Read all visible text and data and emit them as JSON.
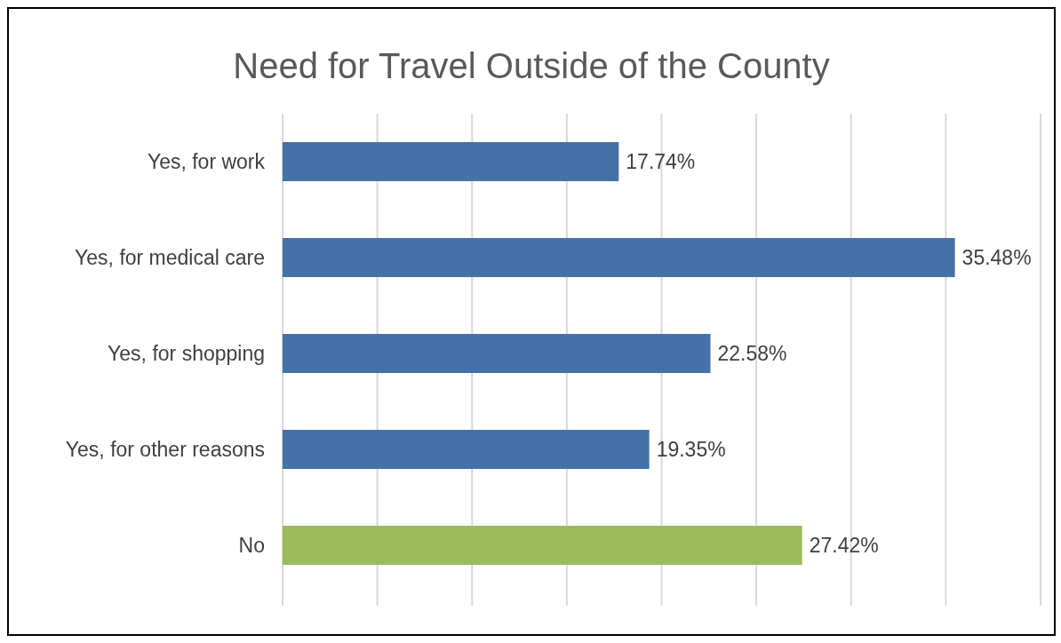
{
  "chart_data": {
    "type": "bar",
    "orientation": "horizontal",
    "title": "Need for Travel Outside of the County",
    "categories": [
      "Yes, for work",
      "Yes, for medical care",
      "Yes, for shopping",
      "Yes, for other reasons",
      "No"
    ],
    "values": [
      17.74,
      35.48,
      22.58,
      19.35,
      27.42
    ],
    "colors": [
      "#4472a8",
      "#4472a8",
      "#4472a8",
      "#4472a8",
      "#9bbb59"
    ],
    "value_labels": [
      "17.74%",
      "35.48%",
      "22.58%",
      "19.35%",
      "27.42%"
    ],
    "xlim": [
      0,
      40
    ],
    "xticks": [
      {
        "value": 0,
        "label": null
      },
      {
        "value": 5,
        "label": null
      },
      {
        "value": 10,
        "label": null
      },
      {
        "value": 15,
        "label": null
      },
      {
        "value": 20,
        "label": null
      },
      {
        "value": 25,
        "label": null
      },
      {
        "value": 30,
        "label": null
      },
      {
        "value": 35,
        "label": null
      },
      {
        "value": 40,
        "label": null
      }
    ],
    "tick_labels": "y",
    "grid": "x",
    "legend": false
  }
}
